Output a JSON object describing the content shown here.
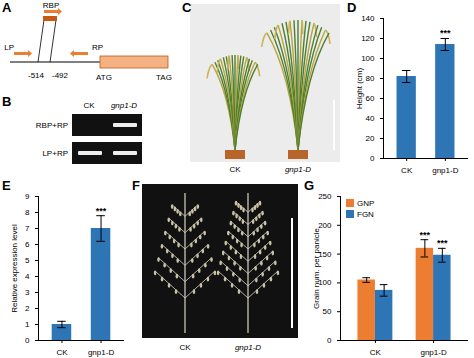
{
  "chart_data": [
    {
      "type": "bar",
      "title": "D",
      "categories": [
        "CK",
        "gnp1-D"
      ],
      "values": [
        82,
        114
      ],
      "errors": [
        6,
        6
      ],
      "color": "#2e75b6",
      "ylabel": "Height (cm)",
      "ylim": [
        0,
        140
      ],
      "yticks": [
        0,
        20,
        40,
        60,
        80,
        100,
        120,
        140
      ],
      "annotations": [
        {
          "category": "gnp1-D",
          "text": "***"
        }
      ]
    },
    {
      "type": "bar",
      "title": "E",
      "categories": [
        "CK",
        "gnp1-D"
      ],
      "values": [
        1,
        7
      ],
      "errors": [
        0.2,
        0.8
      ],
      "color": "#2e75b6",
      "ylabel": "Relative expression level",
      "ylim": [
        0,
        9
      ],
      "yticks": [
        0,
        1,
        2,
        3,
        4,
        5,
        6,
        7,
        8,
        9
      ],
      "annotations": [
        {
          "category": "gnp1-D",
          "text": "***"
        }
      ]
    },
    {
      "type": "bar",
      "title": "G",
      "categories": [
        "CK",
        "gnp1-D"
      ],
      "series": [
        {
          "name": "GNP",
          "color": "#ed7d31",
          "values": [
            105,
            160
          ],
          "errors": [
            4,
            15
          ]
        },
        {
          "name": "FGN",
          "color": "#2e75b6",
          "values": [
            87,
            148
          ],
          "errors": [
            10,
            12
          ]
        }
      ],
      "ylabel": "Grain num. per panicle",
      "ylim": [
        0,
        250
      ],
      "yticks": [
        0,
        50,
        100,
        150,
        200,
        250
      ],
      "legend": "top-left",
      "annotations": [
        {
          "category": "gnp1-D",
          "series": "GNP",
          "text": "***"
        },
        {
          "category": "gnp1-D",
          "series": "FGN",
          "text": "***"
        }
      ]
    }
  ],
  "figure": {
    "A": {
      "label": "A",
      "primers": {
        "left": "LP",
        "insert": "RBP",
        "right": "RP"
      },
      "positions": [
        "-514",
        "-492"
      ],
      "codons": [
        "ATG",
        "TAG"
      ]
    },
    "B": {
      "label": "B",
      "lanes": [
        "CK",
        "gnp1-D"
      ],
      "rows": [
        "RBP+RP",
        "LP+RP"
      ]
    },
    "C": {
      "label": "C",
      "plants": [
        "CK",
        "gnp1-D"
      ]
    },
    "F": {
      "label": "F",
      "panicles": [
        "CK",
        "gnp1-D"
      ]
    }
  }
}
